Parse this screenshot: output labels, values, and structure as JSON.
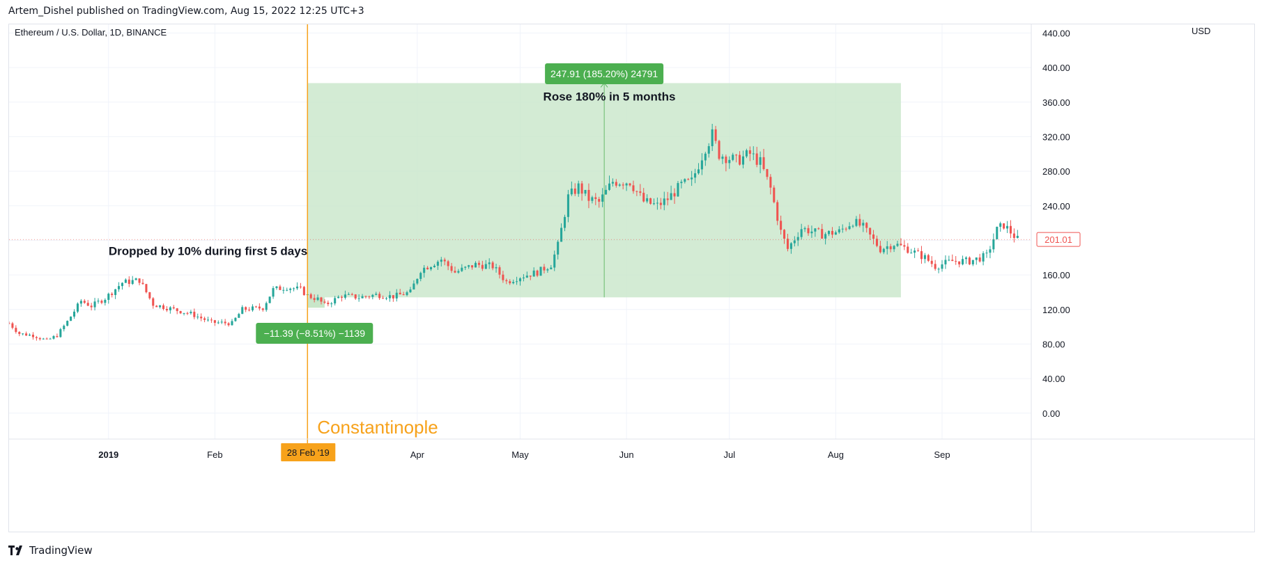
{
  "header": {
    "publisher_line": "Artem_Dishel published on TradingView.com, Aug 15, 2022 12:25 UTC+3"
  },
  "footer": {
    "brand": "TradingView",
    "logo_icon": "tradingview-logo-icon"
  },
  "colors": {
    "up": "#26a69a",
    "down": "#ef5350",
    "range_fill": "#c8e6c9",
    "label_green": "#4caf50",
    "event_line": "#f7a21b",
    "grid": "#f0f3fa",
    "text": "#131722"
  },
  "chart_data": {
    "type": "candlestick",
    "title": "Ethereum / U.S. Dollar, 1D, BINANCE",
    "currency_label": "USD",
    "ylim": [
      -30,
      450
    ],
    "xlim": [
      "2018-12-03",
      "2019-09-27"
    ],
    "y_ticks": [
      "0.00",
      "40.00",
      "80.00",
      "120.00",
      "160.00",
      "200.00",
      "240.00",
      "280.00",
      "320.00",
      "360.00",
      "400.00",
      "440.00"
    ],
    "x_ticks": [
      {
        "label": "2019",
        "date": "2019-01-01",
        "bold": true
      },
      {
        "label": "Feb",
        "date": "2019-02-01"
      },
      {
        "label": "Apr",
        "date": "2019-04-01"
      },
      {
        "label": "May",
        "date": "2019-05-01"
      },
      {
        "label": "Jun",
        "date": "2019-06-01"
      },
      {
        "label": "Jul",
        "date": "2019-07-01"
      },
      {
        "label": "Aug",
        "date": "2019-08-01"
      },
      {
        "label": "Sep",
        "date": "2019-09-01"
      }
    ],
    "last_price": "201.01",
    "event": {
      "label": "Constantinople",
      "date": "2019-02-28",
      "date_label": "28 Feb '19"
    },
    "price_range": {
      "from_date": "2019-02-28",
      "to_date": "2019-08-20",
      "low": 134,
      "high": 382,
      "label": "247.91 (185.20%) 24791"
    },
    "drop_range": {
      "from_date": "2019-02-28",
      "to_date": "2019-03-05",
      "from_price": 134,
      "to_price": 122,
      "label": "−11.39 (−8.51%) −1139"
    },
    "annotations": [
      {
        "text": "Rose 180% in 5 months",
        "date": "2019-05-27",
        "price": 362
      },
      {
        "text": "Dropped by 10% during first 5 days",
        "date": "2019-01-30",
        "price": 183
      }
    ],
    "close_path": [
      [
        "2018-12-03",
        104
      ],
      [
        "2018-12-06",
        92
      ],
      [
        "2018-12-10",
        90
      ],
      [
        "2018-12-14",
        84
      ],
      [
        "2018-12-17",
        90
      ],
      [
        "2018-12-20",
        106
      ],
      [
        "2018-12-24",
        130
      ],
      [
        "2018-12-27",
        124
      ],
      [
        "2018-12-31",
        133
      ],
      [
        "2019-01-05",
        151
      ],
      [
        "2019-01-10",
        154
      ],
      [
        "2019-01-14",
        126
      ],
      [
        "2019-01-20",
        120
      ],
      [
        "2019-01-25",
        115
      ],
      [
        "2019-01-31",
        105
      ],
      [
        "2019-02-06",
        104
      ],
      [
        "2019-02-09",
        120
      ],
      [
        "2019-02-15",
        122
      ],
      [
        "2019-02-18",
        143
      ],
      [
        "2019-02-22",
        146
      ],
      [
        "2019-02-26",
        143
      ],
      [
        "2019-02-28",
        136
      ],
      [
        "2019-03-03",
        132
      ],
      [
        "2019-03-05",
        125
      ],
      [
        "2019-03-10",
        136
      ],
      [
        "2019-03-15",
        134
      ],
      [
        "2019-03-20",
        137
      ],
      [
        "2019-03-25",
        135
      ],
      [
        "2019-03-30",
        140
      ],
      [
        "2019-04-02",
        166
      ],
      [
        "2019-04-08",
        178
      ],
      [
        "2019-04-12",
        163
      ],
      [
        "2019-04-18",
        172
      ],
      [
        "2019-04-23",
        170
      ],
      [
        "2019-04-27",
        152
      ],
      [
        "2019-05-01",
        158
      ],
      [
        "2019-05-06",
        163
      ],
      [
        "2019-05-10",
        172
      ],
      [
        "2019-05-12",
        194
      ],
      [
        "2019-05-15",
        250
      ],
      [
        "2019-05-18",
        262
      ],
      [
        "2019-05-21",
        248
      ],
      [
        "2019-05-24",
        244
      ],
      [
        "2019-05-28",
        268
      ],
      [
        "2019-06-02",
        268
      ],
      [
        "2019-06-06",
        245
      ],
      [
        "2019-06-10",
        240
      ],
      [
        "2019-06-13",
        248
      ],
      [
        "2019-06-17",
        264
      ],
      [
        "2019-06-20",
        268
      ],
      [
        "2019-06-24",
        308
      ],
      [
        "2019-06-26",
        322
      ],
      [
        "2019-06-28",
        300
      ],
      [
        "2019-07-03",
        292
      ],
      [
        "2019-07-07",
        300
      ],
      [
        "2019-07-10",
        290
      ],
      [
        "2019-07-13",
        260
      ],
      [
        "2019-07-16",
        210
      ],
      [
        "2019-07-18",
        190
      ],
      [
        "2019-07-22",
        214
      ],
      [
        "2019-07-28",
        207
      ],
      [
        "2019-08-02",
        210
      ],
      [
        "2019-08-06",
        222
      ],
      [
        "2019-08-09",
        215
      ],
      [
        "2019-08-14",
        190
      ],
      [
        "2019-08-18",
        196
      ],
      [
        "2019-08-22",
        190
      ],
      [
        "2019-08-27",
        180
      ],
      [
        "2019-08-30",
        170
      ],
      [
        "2019-09-04",
        176
      ],
      [
        "2019-09-09",
        176
      ],
      [
        "2019-09-14",
        182
      ],
      [
        "2019-09-17",
        212
      ],
      [
        "2019-09-19",
        218
      ],
      [
        "2019-09-23",
        201
      ]
    ]
  }
}
